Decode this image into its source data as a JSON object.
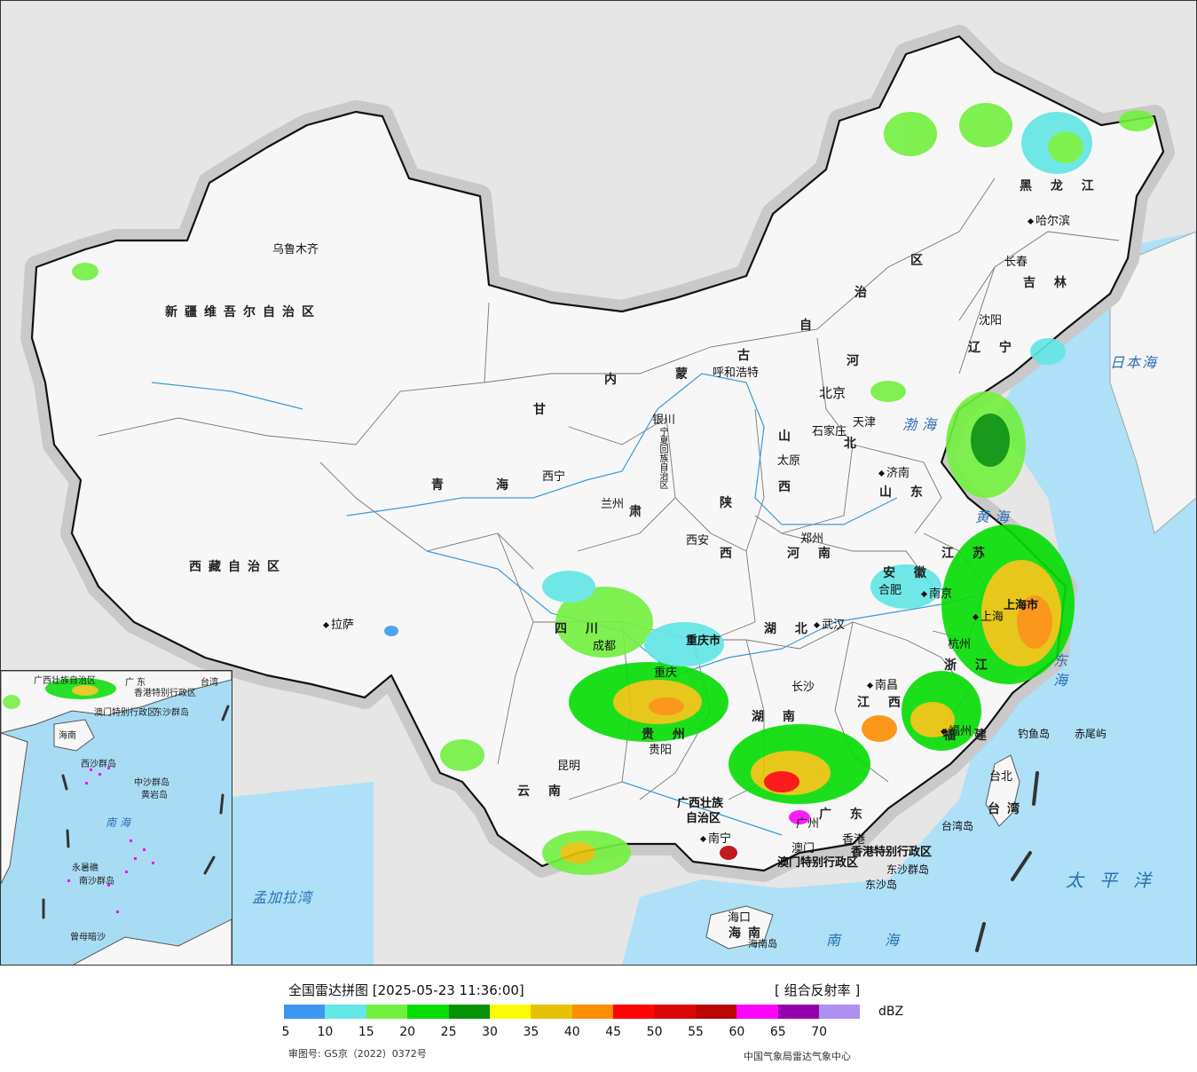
{
  "legend": {
    "title": "全国雷达拼图 [2025-05-23 11:36:00]",
    "product": "[ 组合反射率 ]",
    "unit": "dBZ",
    "colors": [
      "#3d97f0",
      "#62e6e6",
      "#72f03f",
      "#05dd05",
      "#049205",
      "#fcfc06",
      "#e6c204",
      "#fc8e04",
      "#fc0506",
      "#d90506",
      "#bb0506",
      "#fc05fc",
      "#9500ad",
      "#ac8fee"
    ],
    "ticks": [
      "5",
      "10",
      "15",
      "20",
      "25",
      "30",
      "35",
      "40",
      "45",
      "50",
      "55",
      "60",
      "65",
      "70"
    ],
    "review_no": "审图号: GS京（2022）0372号",
    "org": "中国气象局雷达气象中心"
  },
  "map": {
    "regions": [
      {
        "id": "xinjiang",
        "text": "新疆维吾尔自治区"
      },
      {
        "id": "xizang",
        "text": "西藏自治区"
      },
      {
        "id": "qinghai-1",
        "text": "青"
      },
      {
        "id": "qinghai-2",
        "text": "海"
      },
      {
        "id": "gansu-1",
        "text": "甘"
      },
      {
        "id": "gansu-2",
        "text": "肃"
      },
      {
        "id": "neimenggu-1",
        "text": "内"
      },
      {
        "id": "neimenggu-2",
        "text": "蒙"
      },
      {
        "id": "neimenggu-3",
        "text": "古"
      },
      {
        "id": "neimenggu-4",
        "text": "自"
      },
      {
        "id": "neimenggu-5",
        "text": "治"
      },
      {
        "id": "neimenggu-6",
        "text": "区"
      },
      {
        "id": "heilongjiang",
        "text": "黑 龙 江"
      },
      {
        "id": "jilin",
        "text": "吉 林"
      },
      {
        "id": "liaoning",
        "text": "辽 宁"
      },
      {
        "id": "hebei-1",
        "text": "河"
      },
      {
        "id": "hebei-2",
        "text": "北"
      },
      {
        "id": "shanxi-1",
        "text": "山"
      },
      {
        "id": "shanxi-2",
        "text": "西"
      },
      {
        "id": "shaanxi-1",
        "text": "陕"
      },
      {
        "id": "shaanxi-2",
        "text": "西"
      },
      {
        "id": "shandong",
        "text": "山 东"
      },
      {
        "id": "henan",
        "text": "河 南"
      },
      {
        "id": "sichuan",
        "text": "四 川"
      },
      {
        "id": "hubei",
        "text": "湖 北"
      },
      {
        "id": "hunan",
        "text": "湖 南"
      },
      {
        "id": "guizhou",
        "text": "贵 州"
      },
      {
        "id": "yunnan",
        "text": "云 南"
      },
      {
        "id": "guangxi-1",
        "text": "广西壮族"
      },
      {
        "id": "guangxi-2",
        "text": "自治区"
      },
      {
        "id": "guangdong",
        "text": "广 东"
      },
      {
        "id": "jiangxi",
        "text": "江 西"
      },
      {
        "id": "fujian",
        "text": "福 建"
      },
      {
        "id": "zhejiang",
        "text": "浙 江"
      },
      {
        "id": "anhui",
        "text": "安 徽"
      },
      {
        "id": "jiangsu",
        "text": "江 苏"
      },
      {
        "id": "hainan",
        "text": "海南"
      },
      {
        "id": "taiwan",
        "text": "台湾"
      },
      {
        "id": "chongqing",
        "text": "重庆市"
      },
      {
        "id": "shanghai",
        "text": "上海市"
      },
      {
        "id": "ningxia",
        "text": "宁夏回族自治区"
      },
      {
        "id": "hk",
        "text": "香港特别行政区"
      },
      {
        "id": "macao",
        "text": "澳门特别行政区"
      }
    ],
    "cities": [
      {
        "id": "urumqi",
        "text": "乌鲁木齐"
      },
      {
        "id": "lhasa",
        "text": "拉萨"
      },
      {
        "id": "xining",
        "text": "西宁"
      },
      {
        "id": "lanzhou",
        "text": "兰州"
      },
      {
        "id": "yinchuan",
        "text": "银川"
      },
      {
        "id": "hohhot",
        "text": "呼和浩特"
      },
      {
        "id": "beijing",
        "text": "北京"
      },
      {
        "id": "tianjin",
        "text": "天津"
      },
      {
        "id": "shijiazhuang",
        "text": "石家庄"
      },
      {
        "id": "taiyuan",
        "text": "太原"
      },
      {
        "id": "jinan",
        "text": "济南"
      },
      {
        "id": "zhengzhou",
        "text": "郑州"
      },
      {
        "id": "xian",
        "text": "西安"
      },
      {
        "id": "chengdu",
        "text": "成都"
      },
      {
        "id": "chongqing-city",
        "text": "重庆"
      },
      {
        "id": "wuhan",
        "text": "武汉"
      },
      {
        "id": "hefei",
        "text": "合肥"
      },
      {
        "id": "nanjing",
        "text": "南京"
      },
      {
        "id": "shanghai-city",
        "text": "上海"
      },
      {
        "id": "hangzhou",
        "text": "杭州"
      },
      {
        "id": "nanchang",
        "text": "南昌"
      },
      {
        "id": "changsha",
        "text": "长沙"
      },
      {
        "id": "guiyang",
        "text": "贵阳"
      },
      {
        "id": "kunming",
        "text": "昆明"
      },
      {
        "id": "nanning",
        "text": "南宁"
      },
      {
        "id": "guangzhou",
        "text": "广州"
      },
      {
        "id": "hongkong",
        "text": "香港"
      },
      {
        "id": "macau",
        "text": "澳门"
      },
      {
        "id": "fuzhou",
        "text": "福州"
      },
      {
        "id": "taipei",
        "text": "台北"
      },
      {
        "id": "haikou",
        "text": "海口"
      },
      {
        "id": "harbin",
        "text": "哈尔滨"
      },
      {
        "id": "changchun",
        "text": "长春"
      },
      {
        "id": "shenyang",
        "text": "沈阳"
      }
    ],
    "seas": [
      {
        "id": "bohai",
        "text": "渤海"
      },
      {
        "id": "huanghai",
        "text": "黄海"
      },
      {
        "id": "donghai",
        "text": "东海"
      },
      {
        "id": "nanhai",
        "text": "南海"
      },
      {
        "id": "japan-sea",
        "text": "日本海"
      },
      {
        "id": "pacific",
        "text": "太平洋"
      },
      {
        "id": "bengal",
        "text": "孟加拉湾"
      }
    ],
    "islands": [
      {
        "id": "diaoyu",
        "text": "钓鱼岛"
      },
      {
        "id": "chiwei",
        "text": "赤尾屿"
      },
      {
        "id": "dongsha-isl",
        "text": "东沙群岛"
      },
      {
        "id": "dongsha",
        "text": "东沙岛"
      },
      {
        "id": "taiwan-isl",
        "text": "台湾岛"
      },
      {
        "id": "hainan-isl",
        "text": "海南岛"
      }
    ],
    "inset": [
      {
        "id": "i-guangxi",
        "text": "广西壮族自治区"
      },
      {
        "id": "i-guangdong",
        "text": "广 东"
      },
      {
        "id": "i-taiwan",
        "text": "台湾"
      },
      {
        "id": "i-hk",
        "text": "香港特别行政区"
      },
      {
        "id": "i-macao",
        "text": "澳门特别行政区"
      },
      {
        "id": "i-dongsha",
        "text": "东沙群岛"
      },
      {
        "id": "i-hainan",
        "text": "海南"
      },
      {
        "id": "i-xisha",
        "text": "西沙群岛"
      },
      {
        "id": "i-zhongsha",
        "text": "中沙群岛"
      },
      {
        "id": "i-huangyan",
        "text": "黄岩岛"
      },
      {
        "id": "i-nanhai",
        "text": "南 海"
      },
      {
        "id": "i-yongshu",
        "text": "永暑礁"
      },
      {
        "id": "i-nansha",
        "text": "南沙群岛"
      },
      {
        "id": "i-zengmu",
        "text": "曾母暗沙"
      }
    ]
  }
}
